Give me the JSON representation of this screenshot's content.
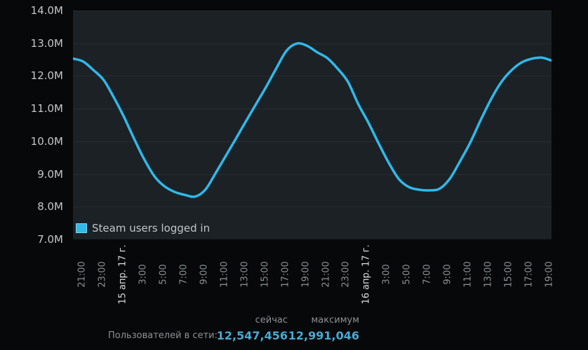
{
  "chart_data": {
    "type": "line",
    "title": "",
    "ylabel": "",
    "xlabel": "",
    "ylim": [
      7.0,
      14.0
    ],
    "grid": "horizontal",
    "legend_position": "bottom-left inside plot",
    "y_tick_labels": [
      "14.0M",
      "13.0M",
      "12.0M",
      "11.0M",
      "10.0M",
      "9.0M",
      "8.0M",
      "7.0M"
    ],
    "x_tick_labels": [
      "21:00",
      "23:00",
      "15 апр. 17 г.",
      "3:00",
      "5:00",
      "7:00",
      "9:00",
      "11:00",
      "13:00",
      "15:00",
      "17:00",
      "19:00",
      "21:00",
      "23:00",
      "16 апр. 17 г.",
      "3:00",
      "5:00",
      "7:00",
      "9:00",
      "11:00",
      "13:00",
      "15:00",
      "17:00",
      "19:00"
    ],
    "date_tick_indices": [
      2,
      14
    ],
    "series": [
      {
        "name": "Steam users logged in",
        "color": "#2fb9e9",
        "unit": "millions of concurrent users, hourly",
        "values_millions": [
          12.53,
          12.44,
          12.18,
          11.88,
          11.35,
          10.75,
          10.08,
          9.45,
          8.93,
          8.62,
          8.45,
          8.36,
          8.31,
          8.52,
          9.02,
          9.55,
          10.08,
          10.62,
          11.15,
          11.68,
          12.25,
          12.78,
          12.99,
          12.92,
          12.72,
          12.54,
          12.22,
          11.82,
          11.15,
          10.58,
          9.95,
          9.35,
          8.85,
          8.6,
          8.52,
          8.5,
          8.55,
          8.85,
          9.38,
          9.95,
          10.62,
          11.25,
          11.78,
          12.15,
          12.4,
          12.52,
          12.56,
          12.47
        ]
      }
    ],
    "annotations": {
      "peak_value": "12,991,046",
      "current_value": "12,547,456"
    }
  },
  "colors": {
    "page_bg": "#060809",
    "plot_bg": "#1c2126",
    "gridline": "#272d32",
    "line": "#2fb9e9",
    "value_text": "#49aad2"
  },
  "legend": {
    "label": "Steam users logged in"
  },
  "stats": {
    "row_label": "Пользователей в сети:",
    "columns": [
      {
        "header": "сейчас",
        "value": "12,547,456"
      },
      {
        "header": "максимум",
        "value": "12,991,046"
      }
    ]
  }
}
